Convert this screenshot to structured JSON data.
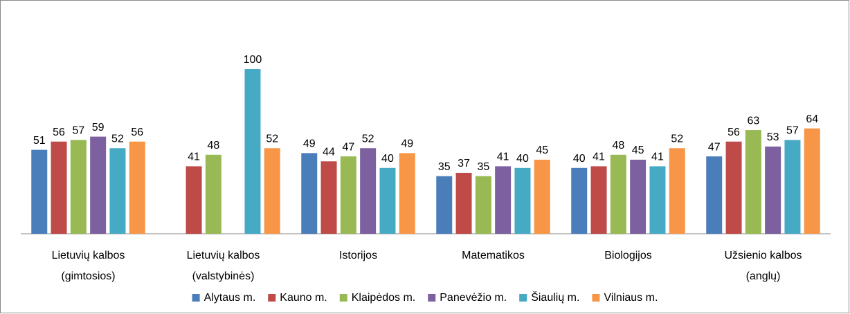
{
  "chart_data": {
    "type": "bar",
    "categories": [
      "Lietuvių kalbos (gimtosios)",
      "Lietuvių kalbos (valstybinės)",
      "Istorijos",
      "Matematikos",
      "Biologijos",
      "Užsienio kalbos (anglų)"
    ],
    "series": [
      {
        "name": "Alytaus m.",
        "color": "#4a7ebb",
        "values": [
          51,
          null,
          49,
          35,
          40,
          47
        ]
      },
      {
        "name": "Kauno m.",
        "color": "#be4b48",
        "values": [
          56,
          41,
          44,
          37,
          41,
          56
        ]
      },
      {
        "name": "Klaipėdos m.",
        "color": "#98b954",
        "values": [
          57,
          48,
          47,
          35,
          48,
          63
        ]
      },
      {
        "name": "Panevėžio m.",
        "color": "#7d60a0",
        "values": [
          59,
          null,
          52,
          41,
          45,
          53
        ]
      },
      {
        "name": "Šiaulių m.",
        "color": "#46aac5",
        "values": [
          52,
          100,
          40,
          40,
          41,
          57
        ]
      },
      {
        "name": "Vilniaus m.",
        "color": "#f79646",
        "values": [
          56,
          52,
          49,
          45,
          52,
          64
        ]
      }
    ],
    "ylim": [
      0,
      100
    ],
    "legend": "bottom"
  }
}
